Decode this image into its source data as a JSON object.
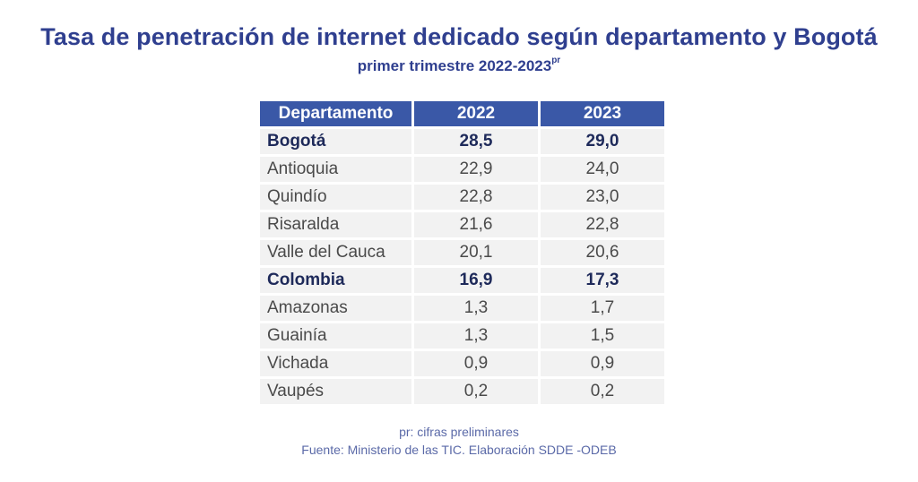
{
  "title": "Tasa de penetración de internet dedicado según departamento y Bogotá",
  "subtitle_main": "primer trimestre 2022-2023",
  "subtitle_sup": "pr",
  "chart_data": {
    "type": "table",
    "columns": [
      "Departamento",
      "2022",
      "2023"
    ],
    "rows": [
      {
        "departamento": "Bogotá",
        "v2022": "28,5",
        "v2023": "29,0",
        "bold": true
      },
      {
        "departamento": "Antioquia",
        "v2022": "22,9",
        "v2023": "24,0",
        "bold": false
      },
      {
        "departamento": "Quindío",
        "v2022": "22,8",
        "v2023": "23,0",
        "bold": false
      },
      {
        "departamento": "Risaralda",
        "v2022": "21,6",
        "v2023": "22,8",
        "bold": false
      },
      {
        "departamento": "Valle del Cauca",
        "v2022": "20,1",
        "v2023": "20,6",
        "bold": false
      },
      {
        "departamento": "Colombia",
        "v2022": "16,9",
        "v2023": "17,3",
        "bold": true
      },
      {
        "departamento": "Amazonas",
        "v2022": "1,3",
        "v2023": "1,7",
        "bold": false
      },
      {
        "departamento": "Guainía",
        "v2022": "1,3",
        "v2023": "1,5",
        "bold": false
      },
      {
        "departamento": "Vichada",
        "v2022": "0,9",
        "v2023": "0,9",
        "bold": false
      },
      {
        "departamento": "Vaupés",
        "v2022": "0,2",
        "v2023": "0,2",
        "bold": false
      }
    ]
  },
  "footer": {
    "note": "pr: cifras preliminares",
    "source": "Fuente: Ministerio de las TIC. Elaboración SDDE -ODEB"
  },
  "colors": {
    "title": "#2f3f8f",
    "header_bg": "#3a58a7",
    "row_bg": "#f2f2f2",
    "footer_text": "#5b6aa8"
  }
}
